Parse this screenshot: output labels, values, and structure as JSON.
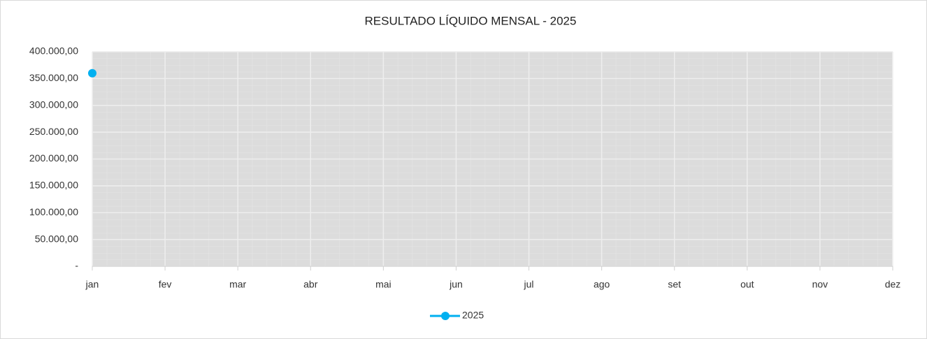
{
  "chart_data": {
    "type": "line",
    "title": "RESULTADO LÍQUIDO MENSAL - 2025",
    "categories": [
      "jan",
      "fev",
      "mar",
      "abr",
      "mai",
      "jun",
      "jul",
      "ago",
      "set",
      "out",
      "nov",
      "dez"
    ],
    "series": [
      {
        "name": "2025",
        "color": "#00b0f0",
        "values": [
          360000,
          null,
          null,
          null,
          null,
          null,
          null,
          null,
          null,
          null,
          null,
          null
        ]
      }
    ],
    "ylim": [
      0,
      400000
    ],
    "yticks": [
      {
        "value": 0,
        "label": "-"
      },
      {
        "value": 50000,
        "label": "50.000,00"
      },
      {
        "value": 100000,
        "label": "100.000,00"
      },
      {
        "value": 150000,
        "label": "150.000,00"
      },
      {
        "value": 200000,
        "label": "200.000,00"
      },
      {
        "value": 250000,
        "label": "250.000,00"
      },
      {
        "value": 300000,
        "label": "300.000,00"
      },
      {
        "value": 350000,
        "label": "350.000,00"
      },
      {
        "value": 400000,
        "label": "400.000,00"
      }
    ],
    "grid": true,
    "legend": "bottom"
  }
}
